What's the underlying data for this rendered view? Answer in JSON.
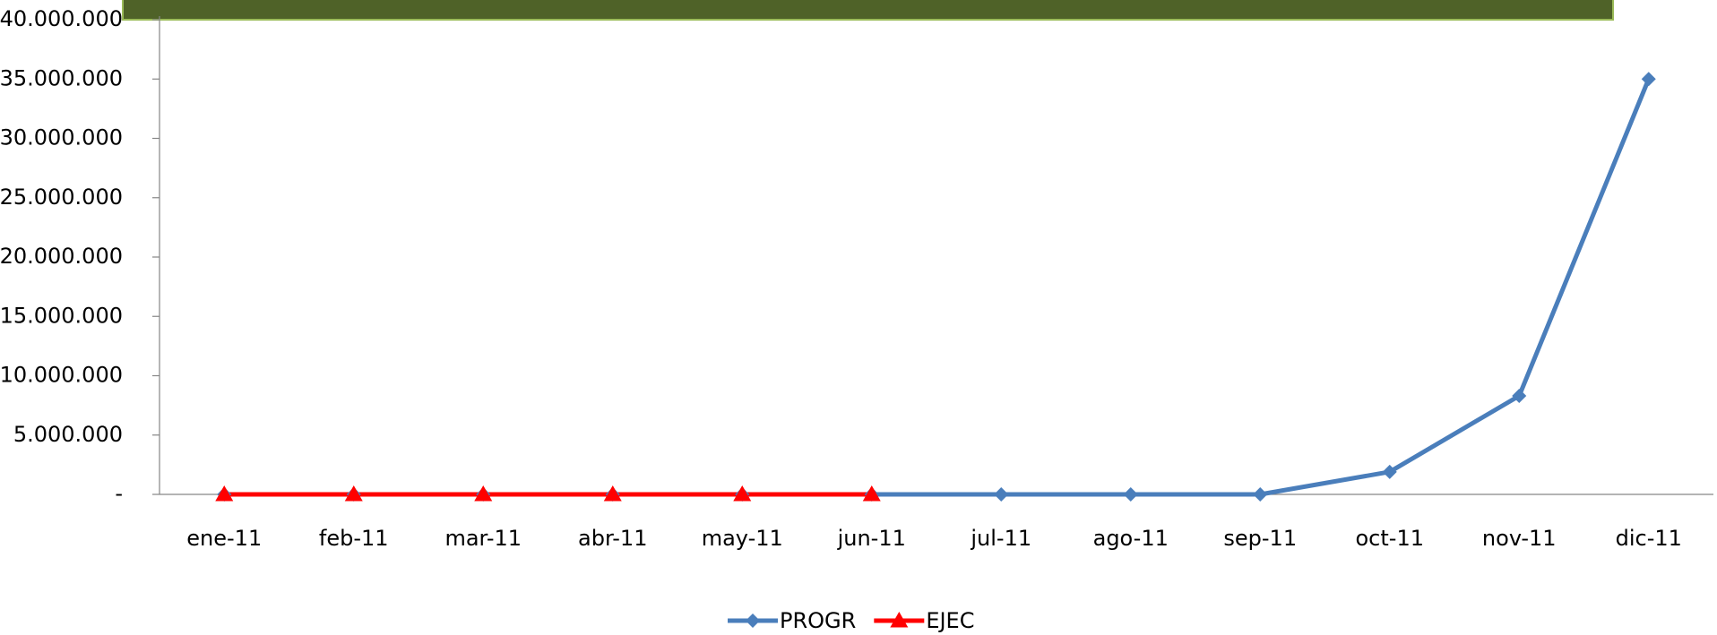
{
  "chart_data": {
    "type": "line",
    "categories": [
      "ene-11",
      "feb-11",
      "mar-11",
      "abr-11",
      "may-11",
      "jun-11",
      "jul-11",
      "ago-11",
      "sep-11",
      "oct-11",
      "nov-11",
      "dic-11"
    ],
    "series": [
      {
        "name": "PROGR",
        "color": "#4a7ebb",
        "marker": "diamond",
        "values": [
          0,
          0,
          0,
          0,
          0,
          0,
          0,
          0,
          0,
          1900000,
          8300000,
          35000000
        ]
      },
      {
        "name": "EJEC",
        "color": "#ff0000",
        "marker": "triangle",
        "values": [
          0,
          0,
          0,
          0,
          0,
          0,
          null,
          null,
          null,
          null,
          null,
          null
        ]
      }
    ],
    "ylim": [
      0,
      40000000
    ],
    "yticks": [
      {
        "value": 0,
        "label": "-"
      },
      {
        "value": 5000000,
        "label": "5.000.000"
      },
      {
        "value": 10000000,
        "label": "10.000.000"
      },
      {
        "value": 15000000,
        "label": "15.000.000"
      },
      {
        "value": 20000000,
        "label": "20.000.000"
      },
      {
        "value": 25000000,
        "label": "25.000.000"
      },
      {
        "value": 30000000,
        "label": "30.000.000"
      },
      {
        "value": 35000000,
        "label": "35.000.000"
      },
      {
        "value": 40000000,
        "label": "40.000.000"
      }
    ],
    "grid": false,
    "legend": "bottom"
  }
}
